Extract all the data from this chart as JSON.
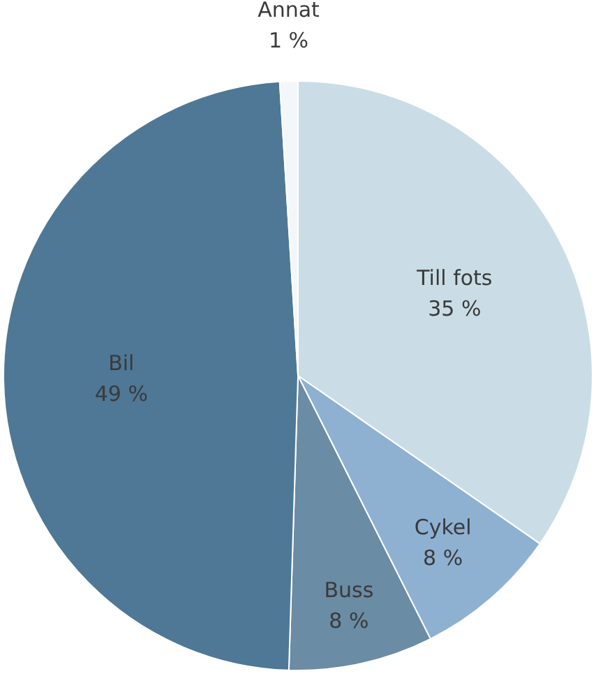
{
  "chart_data": {
    "type": "pie",
    "categories": [
      "Till fots",
      "Cykel",
      "Buss",
      "Bil",
      "Annat"
    ],
    "values": [
      35,
      8,
      8,
      49,
      1
    ],
    "value_labels": [
      "35 %",
      "8 %",
      "8 %",
      "49 %",
      "1 %"
    ],
    "colors": [
      "#cadde7",
      "#8eb1d2",
      "#6a8ca4",
      "#4e7896",
      "#f4f7f9"
    ],
    "legend": false
  }
}
